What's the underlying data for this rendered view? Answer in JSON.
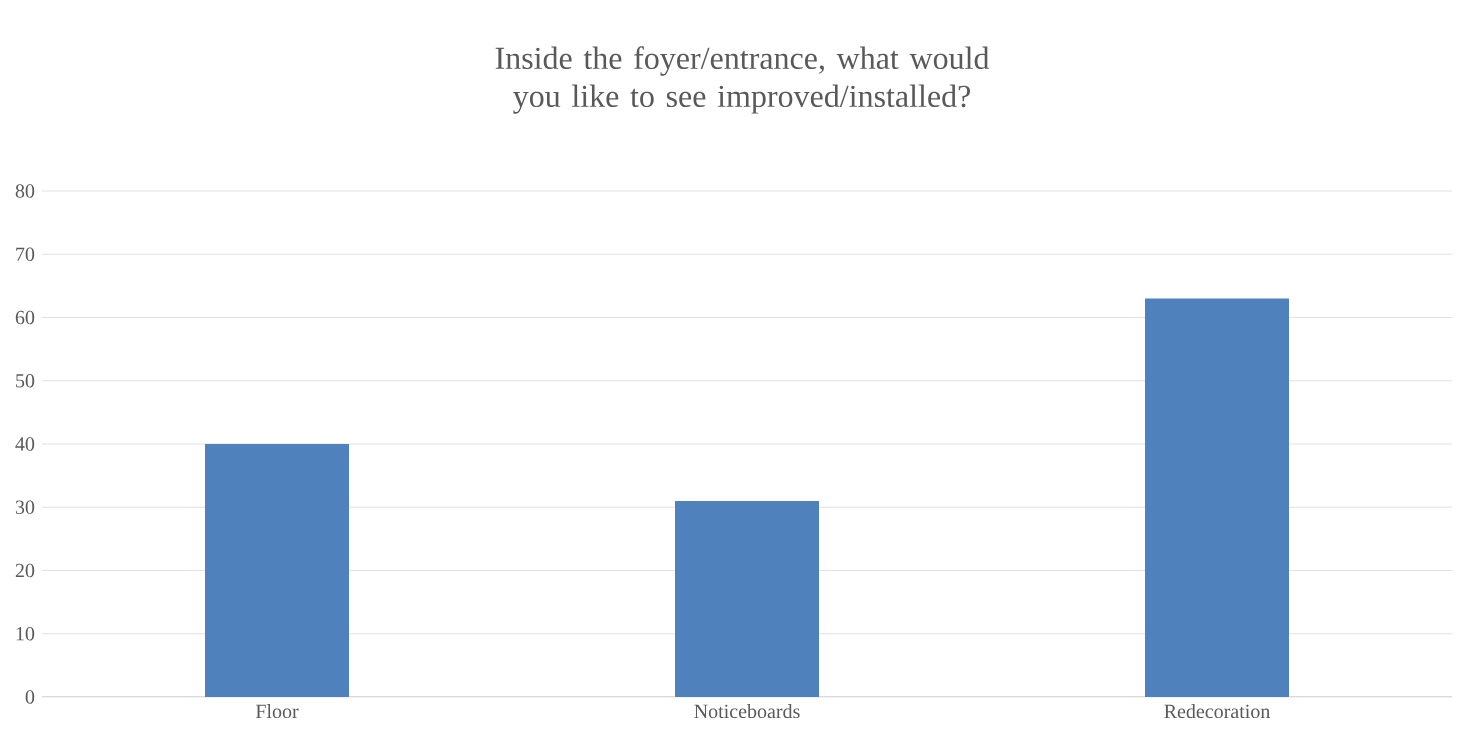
{
  "chart_data": {
    "type": "bar",
    "title": "Inside the foyer/entrance, what would you like to see improved/installed?",
    "categories": [
      "Floor",
      "Noticeboards",
      "Redecoration"
    ],
    "values": [
      40,
      31,
      63
    ],
    "color": "#4f81bd",
    "ylim": [
      0,
      80
    ],
    "yticks": [
      0,
      10,
      20,
      30,
      40,
      50,
      60,
      70,
      80
    ],
    "grid": "y"
  }
}
